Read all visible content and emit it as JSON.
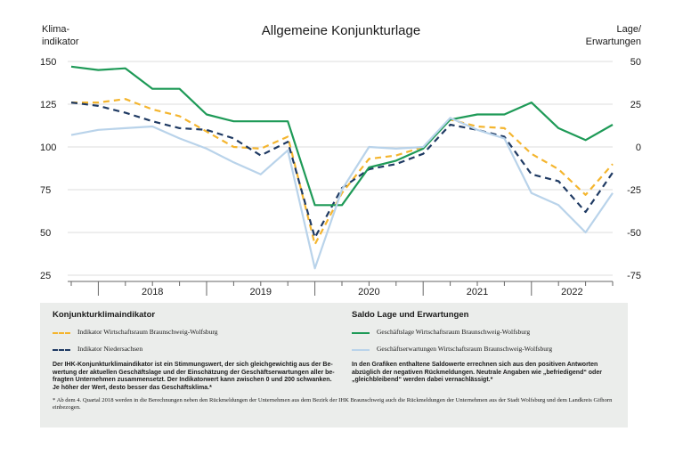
{
  "chart_data": {
    "type": "line",
    "title": "Allgemeine Konjunkturlage",
    "left_axis_label": [
      "Klima-",
      "indikator"
    ],
    "right_axis_label": [
      "Lage/",
      "Erwartungen"
    ],
    "left_ylim": [
      25,
      150
    ],
    "left_ticks": [
      25,
      50,
      75,
      100,
      125,
      150
    ],
    "right_ylim": [
      -75,
      50
    ],
    "right_ticks": [
      "-75",
      "-50",
      "-25",
      "0",
      "25",
      "50"
    ],
    "x_periods": [
      "2017-Q4",
      "2018-Q1",
      "2018-Q2",
      "2018-Q3",
      "2018-Q4",
      "2019-Q1",
      "2019-Q2",
      "2019-Q3",
      "2019-Q4",
      "2020-Q1",
      "2020-Q2",
      "2020-Q3",
      "2020-Q4",
      "2021-Q1",
      "2021-Q2",
      "2021-Q3",
      "2021-Q4",
      "2022-Q1",
      "2022-Q2",
      "2022-Q3",
      "2022-Q4"
    ],
    "year_labels": [
      "2018",
      "2019",
      "2020",
      "2021",
      "2022"
    ],
    "series": [
      {
        "name": "Indikator Wirtschaftsraum Braunschweig-Wolfsburg",
        "axis": "left",
        "color": "#f4b52e",
        "dash": "7,5",
        "values": [
          126,
          126,
          128,
          122,
          118,
          109,
          100,
          99,
          106,
          43,
          73,
          93,
          95,
          100,
          116,
          112,
          111,
          96,
          87,
          72,
          90
        ]
      },
      {
        "name": "Indikator Niedersachsen",
        "axis": "left",
        "color": "#1f3a63",
        "dash": "7,5",
        "values": [
          126,
          124,
          120,
          115,
          111,
          110,
          105,
          95,
          103,
          47,
          76,
          87,
          90,
          96,
          113,
          110,
          106,
          84,
          80,
          62,
          85
        ]
      },
      {
        "name": "Geschäftslage Wirtschaftsraum Braunschweig-Wolfsburg",
        "axis": "right",
        "color": "#1e9a57",
        "dash": "",
        "values": [
          47,
          45,
          46,
          34,
          34,
          19,
          15,
          15,
          15,
          -34,
          -34,
          -12,
          -8,
          -1,
          16,
          19,
          19,
          26,
          11,
          4,
          13
        ]
      },
      {
        "name": "Geschäftserwartungen Wirtschaftsraum Braunschweig-Wolfsburg",
        "axis": "right",
        "color": "#b9d3ea",
        "dash": "",
        "values": [
          7,
          10,
          11,
          12,
          5,
          -1,
          -9,
          -16,
          -2,
          -71,
          -25,
          0,
          -1,
          0,
          17,
          10,
          5,
          -27,
          -34,
          -50,
          -27
        ]
      }
    ]
  },
  "legend": {
    "left_heading": "Konjunkturklimaindikator",
    "right_heading": "Saldo Lage und Erwartungen",
    "left_note": "Der IHK-Konjunkturklimaindikator ist ein Stimmungswert, der sich gleichgewichtig aus der Be-wertung der aktuellen Geschäftslage und der Einschätzung der Geschäftserwartungen aller be-fragten Unternehmen zusammensetzt. Der Indikatorwert kann zwischen 0 und 200 schwanken. Je höher der Wert, desto besser das Geschäftsklima.*",
    "right_note": "In den Grafiken enthaltene Saldowerte errechnen sich aus den positiven Antworten abzüglich der negativen Rückmeldungen. Neutrale Angaben wie „befriedigend“ oder „gleichbleibend“ werden dabei vernachlässigt.*",
    "footnote": "* Ab dem 4. Quartal 2018 werden in die Berechnungen neben den Rückmeldungen der Unternehmen aus dem Bezirk der IHK Braunschweig auch die Rückmeldungen der Unternehmen aus der Stadt Wolfsburg und dem Landkreis Gifhorn einbezogen."
  }
}
